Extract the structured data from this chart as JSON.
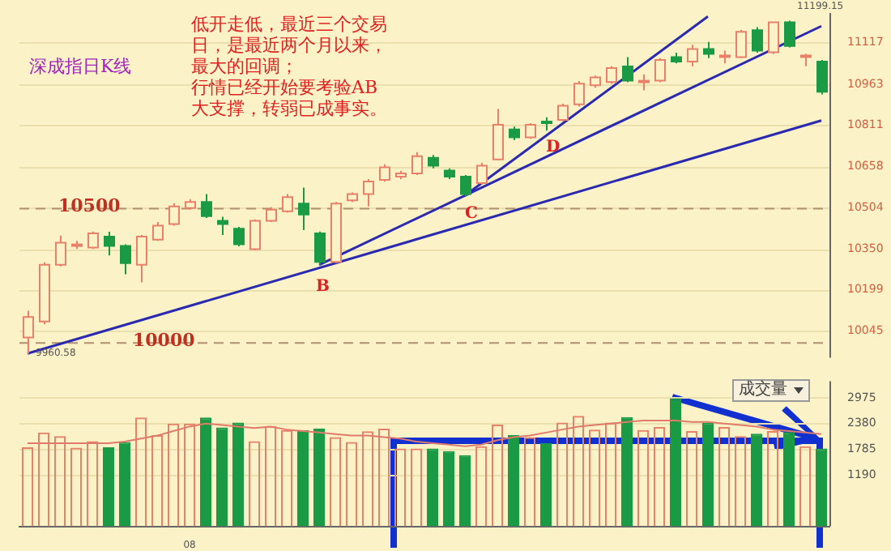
{
  "chart_data": [
    {
      "type": "candlestick",
      "title": "深成指日K线",
      "categories": [
        null,
        null,
        null,
        null,
        null,
        null,
        null,
        null,
        null,
        null,
        null,
        null,
        null,
        null,
        null,
        null,
        null,
        null,
        null,
        null,
        null,
        null,
        null,
        null,
        null,
        null,
        null,
        null,
        null,
        null,
        null,
        null,
        null,
        null,
        null,
        null,
        null,
        null,
        null,
        null,
        null,
        null,
        null,
        null,
        null,
        null,
        null,
        null,
        null,
        null
      ],
      "ohlc": [
        [
          10021,
          10120,
          9960.58,
          10097
        ],
        [
          10080,
          10300,
          10070,
          10291
        ],
        [
          10291,
          10400,
          10285,
          10373
        ],
        [
          10361,
          10380,
          10350,
          10367
        ],
        [
          10355,
          10415,
          10350,
          10408
        ],
        [
          10396,
          10414,
          10326,
          10361
        ],
        [
          10361,
          10367,
          10256,
          10297
        ],
        [
          10291,
          10402,
          10226,
          10396
        ],
        [
          10385,
          10450,
          10380,
          10437
        ],
        [
          10443,
          10520,
          10437,
          10508
        ],
        [
          10502,
          10535,
          10496,
          10525
        ],
        [
          10525,
          10554,
          10465,
          10472
        ],
        [
          10455,
          10470,
          10402,
          10443
        ],
        [
          10425,
          10432,
          10360,
          10367
        ],
        [
          10349,
          10460,
          10345,
          10455
        ],
        [
          10455,
          10505,
          10450,
          10496
        ],
        [
          10490,
          10554,
          10485,
          10543
        ],
        [
          10519,
          10578,
          10420,
          10478
        ],
        [
          10408,
          10415,
          10291,
          10302
        ],
        [
          10302,
          10525,
          10297,
          10519
        ],
        [
          10531,
          10560,
          10525,
          10554
        ],
        [
          10554,
          10610,
          10508,
          10601
        ],
        [
          10607,
          10665,
          10600,
          10654
        ],
        [
          10619,
          10640,
          10610,
          10631
        ],
        [
          10631,
          10710,
          10625,
          10695
        ],
        [
          10689,
          10700,
          10650,
          10660
        ],
        [
          10642,
          10650,
          10610,
          10619
        ],
        [
          10619,
          10625,
          10545,
          10554
        ],
        [
          10595,
          10670,
          10590,
          10660
        ],
        [
          10683,
          10871,
          10680,
          10812
        ],
        [
          10795,
          10805,
          10755,
          10765
        ],
        [
          10765,
          10818,
          10760,
          10812
        ],
        [
          10824,
          10840,
          10790,
          10818
        ],
        [
          10830,
          10890,
          10825,
          10883
        ],
        [
          10888,
          10975,
          10880,
          10965
        ],
        [
          10959,
          10995,
          10950,
          10988
        ],
        [
          10971,
          11030,
          10965,
          11023
        ],
        [
          11029,
          11064,
          10970,
          10976
        ],
        [
          10971,
          11000,
          10940,
          10976
        ],
        [
          10976,
          11060,
          10970,
          11053
        ],
        [
          11064,
          11080,
          11040,
          11047
        ],
        [
          11047,
          11110,
          11030,
          11094
        ],
        [
          11094,
          11120,
          11060,
          11076
        ],
        [
          11064,
          11088,
          11040,
          11070
        ],
        [
          11064,
          11165,
          11060,
          11158
        ],
        [
          11164,
          11175,
          11080,
          11088
        ],
        [
          11082,
          11195,
          11075,
          11193
        ],
        [
          11193,
          11199.15,
          11100,
          11105
        ],
        [
          11064,
          11076,
          11030,
          11070
        ],
        [
          11047,
          11053,
          10925,
          10935
        ]
      ],
      "colors": [
        "#e8806a",
        "#e8806a",
        "#e8806a",
        "#e8806a",
        "#e8806a",
        "#1a9a45",
        "#1a9a45",
        "#e8806a",
        "#e8806a",
        "#e8806a",
        "#e8806a",
        "#1a9a45",
        "#1a9a45",
        "#1a9a45",
        "#e8806a",
        "#e8806a",
        "#e8806a",
        "#1a9a45",
        "#1a9a45",
        "#e8806a",
        "#e8806a",
        "#e8806a",
        "#e8806a",
        "#e8806a",
        "#e8806a",
        "#1a9a45",
        "#1a9a45",
        "#1a9a45",
        "#e8806a",
        "#e8806a",
        "#1a9a45",
        "#e8806a",
        "#1a9a45",
        "#e8806a",
        "#e8806a",
        "#e8806a",
        "#e8806a",
        "#1a9a45",
        "#e8806a",
        "#e8806a",
        "#1a9a45",
        "#e8806a",
        "#1a9a45",
        "#e8806a",
        "#e8806a",
        "#1a9a45",
        "#e8806a",
        "#1a9a45",
        "#e8806a",
        "#1a9a45"
      ],
      "series": [
        {
          "type": "line",
          "color": "#2a2ab0",
          "values": [
            9961,
            null,
            null,
            null,
            null,
            null,
            null,
            null,
            null,
            null,
            null,
            null,
            null,
            null,
            null,
            null,
            null,
            null,
            null,
            null,
            null,
            null,
            null,
            null,
            null,
            null,
            null,
            null,
            null,
            null,
            null,
            null,
            null,
            null,
            null,
            null,
            null,
            null,
            null,
            null,
            null,
            null,
            null,
            null,
            null,
            null,
            null,
            null,
            null,
            10828
          ]
        },
        {
          "type": "line",
          "color": "#2a2ab0",
          "values": [
            null,
            null,
            null,
            null,
            null,
            null,
            null,
            null,
            null,
            null,
            null,
            null,
            null,
            null,
            null,
            null,
            null,
            null,
            10291,
            null,
            null,
            null,
            null,
            null,
            null,
            null,
            null,
            null,
            null,
            null,
            null,
            null,
            null,
            null,
            null,
            null,
            null,
            null,
            null,
            null,
            null,
            null,
            null,
            null,
            null,
            null,
            null,
            null,
            null,
            11179
          ]
        },
        {
          "type": "line",
          "color": "#2a2ab0",
          "values": [
            null,
            null,
            null,
            null,
            null,
            null,
            null,
            null,
            null,
            null,
            null,
            null,
            null,
            null,
            null,
            null,
            null,
            null,
            null,
            null,
            null,
            null,
            null,
            null,
            null,
            null,
            null,
            10549,
            null,
            null,
            null,
            null,
            null,
            null,
            null,
            null,
            null,
            null,
            null,
            null,
            null,
            null,
            11215,
            null,
            null,
            null,
            null,
            null,
            null,
            null
          ]
        }
      ],
      "ylim": [
        9945,
        11228
      ],
      "yticks": [
        10045,
        10199,
        10350,
        10504,
        10658,
        10811,
        10963,
        11117
      ],
      "grid": "y",
      "tick_labels": "y",
      "legend": false,
      "ref_lines": [
        {
          "axis": "y",
          "value": 10500,
          "label": "10500",
          "color": "#b09070",
          "line_style": "dashed"
        },
        {
          "axis": "y",
          "value": 10000,
          "label": "10000",
          "color": "#b09070",
          "line_style": "dashed"
        }
      ],
      "annotations": [
        "低开走低，最近三个交易日，是最近两个月以来，最大的回调；",
        "行情已经开始要考验AB大支撑，转弱已成事实。",
        "B",
        "C",
        "D",
        {
          "text": "11199.15",
          "y": 11199.15
        },
        {
          "text": "9960.58",
          "y": 9960.58
        }
      ]
    },
    {
      "type": "bar",
      "categories": [
        null,
        null,
        null,
        null,
        null,
        null,
        null,
        null,
        null,
        null,
        "08",
        null,
        null,
        null,
        null,
        null,
        null,
        null,
        null,
        null,
        null,
        null,
        null,
        null,
        null,
        null,
        null,
        null,
        null,
        null,
        null,
        null,
        null,
        null,
        null,
        null,
        null,
        null,
        null,
        null,
        null,
        null,
        null,
        null,
        null,
        null,
        null,
        null,
        null,
        null
      ],
      "series": [
        {
          "type": "bar",
          "values": [
            1830,
            2170,
            2090,
            1820,
            1970,
            1830,
            1950,
            2520,
            2110,
            2380,
            2380,
            2520,
            2290,
            2400,
            1970,
            2320,
            2230,
            2230,
            2260,
            2065,
            1950,
            2200,
            2260,
            1800,
            1800,
            1800,
            1740,
            1645,
            1855,
            2355,
            2110,
            2065,
            1925,
            2400,
            2555,
            2240,
            2400,
            2530,
            2230,
            2300,
            2965,
            2205,
            2400,
            2300,
            2090,
            2145,
            2205,
            2180,
            1855,
            1800
          ],
          "colors": [
            "#e8806a",
            "#e8806a",
            "#e8806a",
            "#e8806a",
            "#e8806a",
            "#1a9a45",
            "#1a9a45",
            "#e8806a",
            "#e8806a",
            "#e8806a",
            "#e8806a",
            "#1a9a45",
            "#1a9a45",
            "#1a9a45",
            "#e8806a",
            "#e8806a",
            "#e8806a",
            "#1a9a45",
            "#1a9a45",
            "#e8806a",
            "#e8806a",
            "#e8806a",
            "#e8806a",
            "#e8806a",
            "#e8806a",
            "#1a9a45",
            "#1a9a45",
            "#1a9a45",
            "#e8806a",
            "#e8806a",
            "#1a9a45",
            "#e8806a",
            "#1a9a45",
            "#e8806a",
            "#e8806a",
            "#e8806a",
            "#e8806a",
            "#1a9a45",
            "#e8806a",
            "#e8806a",
            "#1a9a45",
            "#e8806a",
            "#1a9a45",
            "#e8806a",
            "#e8806a",
            "#1a9a45",
            "#e8806a",
            "#1a9a45",
            "#e8806a",
            "#1a9a45"
          ]
        },
        {
          "type": "line",
          "color": "#e07a6a",
          "values": [
            1925,
            1925,
            1925,
            1925,
            1925,
            1925,
            1960,
            2030,
            2100,
            2205,
            2310,
            2380,
            2345,
            2310,
            2275,
            2310,
            2240,
            2205,
            2170,
            2135,
            2100,
            2100,
            2065,
            2030,
            1960,
            1925,
            1890,
            1855,
            1890,
            1995,
            2065,
            2100,
            2170,
            2240,
            2310,
            2345,
            2380,
            2415,
            2450,
            2450,
            2450,
            2415,
            2415,
            2380,
            2345,
            2310,
            2240,
            2205,
            2170,
            2135
          ]
        }
      ],
      "ylim": [
        0,
        3360
      ],
      "yticks": [
        1190,
        1785,
        2380,
        2975
      ],
      "grid": "y",
      "legend": false,
      "annotations": [
        "成交量"
      ]
    }
  ]
}
